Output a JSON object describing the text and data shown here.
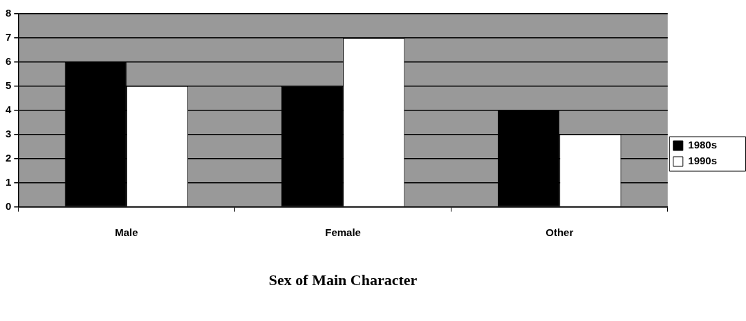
{
  "chart_data": {
    "type": "bar",
    "xlabel": "Sex of Main Character",
    "categories": [
      "Male",
      "Female",
      "Other"
    ],
    "series": [
      {
        "name": "1980s",
        "color": "#000000",
        "values": [
          6,
          5,
          4
        ]
      },
      {
        "name": "1990s",
        "color": "#ffffff",
        "values": [
          5,
          7,
          3
        ]
      }
    ],
    "ylim": [
      0,
      8
    ],
    "yticks": [
      0,
      1,
      2,
      3,
      4,
      5,
      6,
      7,
      8
    ],
    "grid": "y",
    "legend": "right"
  }
}
